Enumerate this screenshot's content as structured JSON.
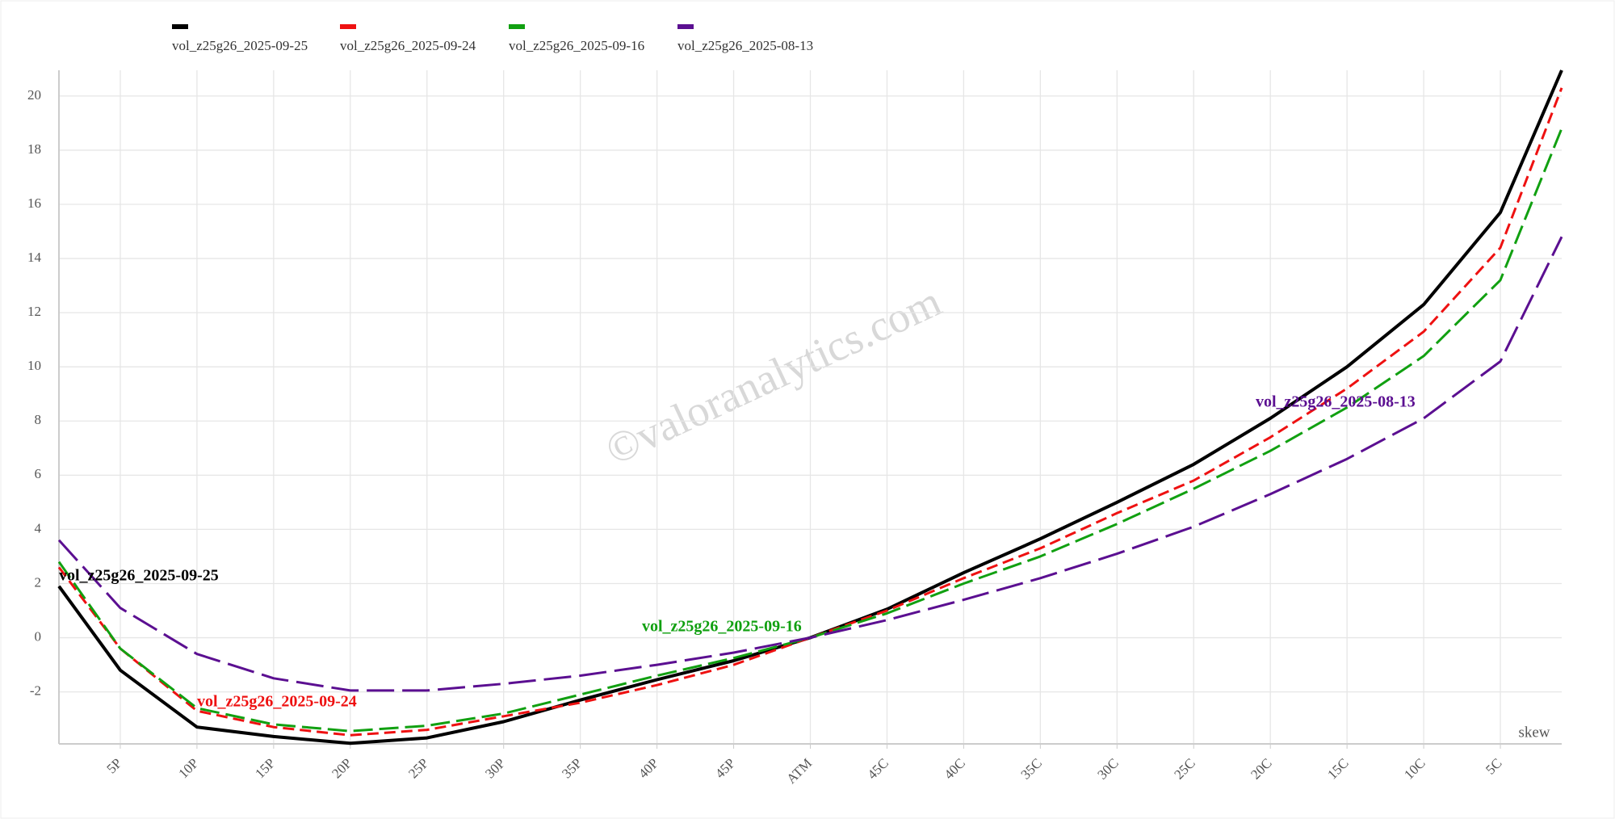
{
  "chart_data": {
    "type": "line",
    "watermark": "©valoranalytics.com",
    "x_label": "skew",
    "x": [
      0.2,
      1,
      2,
      3,
      4,
      5,
      6,
      7,
      8,
      9,
      10,
      11,
      12,
      13,
      14,
      15,
      16,
      17,
      18,
      19,
      19.8
    ],
    "xlim": [
      0.2,
      19.8
    ],
    "xticks": [
      {
        "value": 1,
        "label": "5P"
      },
      {
        "value": 2,
        "label": "10P"
      },
      {
        "value": 3,
        "label": "15P"
      },
      {
        "value": 4,
        "label": "20P"
      },
      {
        "value": 5,
        "label": "25P"
      },
      {
        "value": 6,
        "label": "30P"
      },
      {
        "value": 7,
        "label": "35P"
      },
      {
        "value": 8,
        "label": "40P"
      },
      {
        "value": 9,
        "label": "45P"
      },
      {
        "value": 10,
        "label": "ATM"
      },
      {
        "value": 11,
        "label": "45C"
      },
      {
        "value": 12,
        "label": "40C"
      },
      {
        "value": 13,
        "label": "35C"
      },
      {
        "value": 14,
        "label": "30C"
      },
      {
        "value": 15,
        "label": "25C"
      },
      {
        "value": 16,
        "label": "20C"
      },
      {
        "value": 17,
        "label": "15C"
      },
      {
        "value": 18,
        "label": "10C"
      },
      {
        "value": 19,
        "label": "5C"
      }
    ],
    "ylim": [
      -3.92,
      20.95
    ],
    "yticks": [
      -2,
      0,
      2,
      4,
      6,
      8,
      10,
      12,
      14,
      16,
      18,
      20
    ],
    "grid": true,
    "legend": "top",
    "series": [
      {
        "name": "vol_z25g26_2025-09-25",
        "color": "#000000",
        "values": [
          1.9,
          -1.2,
          -3.3,
          -3.65,
          -3.9,
          -3.7,
          -3.1,
          -2.3,
          -1.55,
          -0.85,
          0,
          1.05,
          2.4,
          3.65,
          5.0,
          6.4,
          8.1,
          10.0,
          12.3,
          15.7,
          20.95
        ]
      },
      {
        "name": "vol_z25g26_2025-09-24",
        "color": "#ee1111",
        "values": [
          2.6,
          -0.4,
          -2.7,
          -3.3,
          -3.6,
          -3.4,
          -2.9,
          -2.4,
          -1.75,
          -1.0,
          0,
          1.0,
          2.2,
          3.3,
          4.6,
          5.8,
          7.4,
          9.2,
          11.3,
          14.4,
          20.3
        ]
      },
      {
        "name": "vol_z25g26_2025-09-16",
        "color": "#11a011",
        "values": [
          2.8,
          -0.4,
          -2.6,
          -3.2,
          -3.45,
          -3.25,
          -2.8,
          -2.1,
          -1.4,
          -0.75,
          0,
          0.9,
          2.0,
          3.0,
          4.2,
          5.5,
          6.9,
          8.5,
          10.4,
          13.2,
          18.8
        ]
      },
      {
        "name": "vol_z25g26_2025-08-13",
        "color": "#5b0f91",
        "values": [
          3.6,
          1.1,
          -0.6,
          -1.5,
          -1.95,
          -1.95,
          -1.7,
          -1.4,
          -1.0,
          -0.55,
          0,
          0.65,
          1.4,
          2.2,
          3.1,
          4.1,
          5.3,
          6.6,
          8.1,
          10.2,
          14.8
        ]
      }
    ],
    "annotations": [
      "vol_z25g26_2025-09-25",
      "vol_z25g26_2025-09-24",
      "vol_z25g26_2025-09-16",
      "vol_z25g26_2025-08-13"
    ]
  }
}
